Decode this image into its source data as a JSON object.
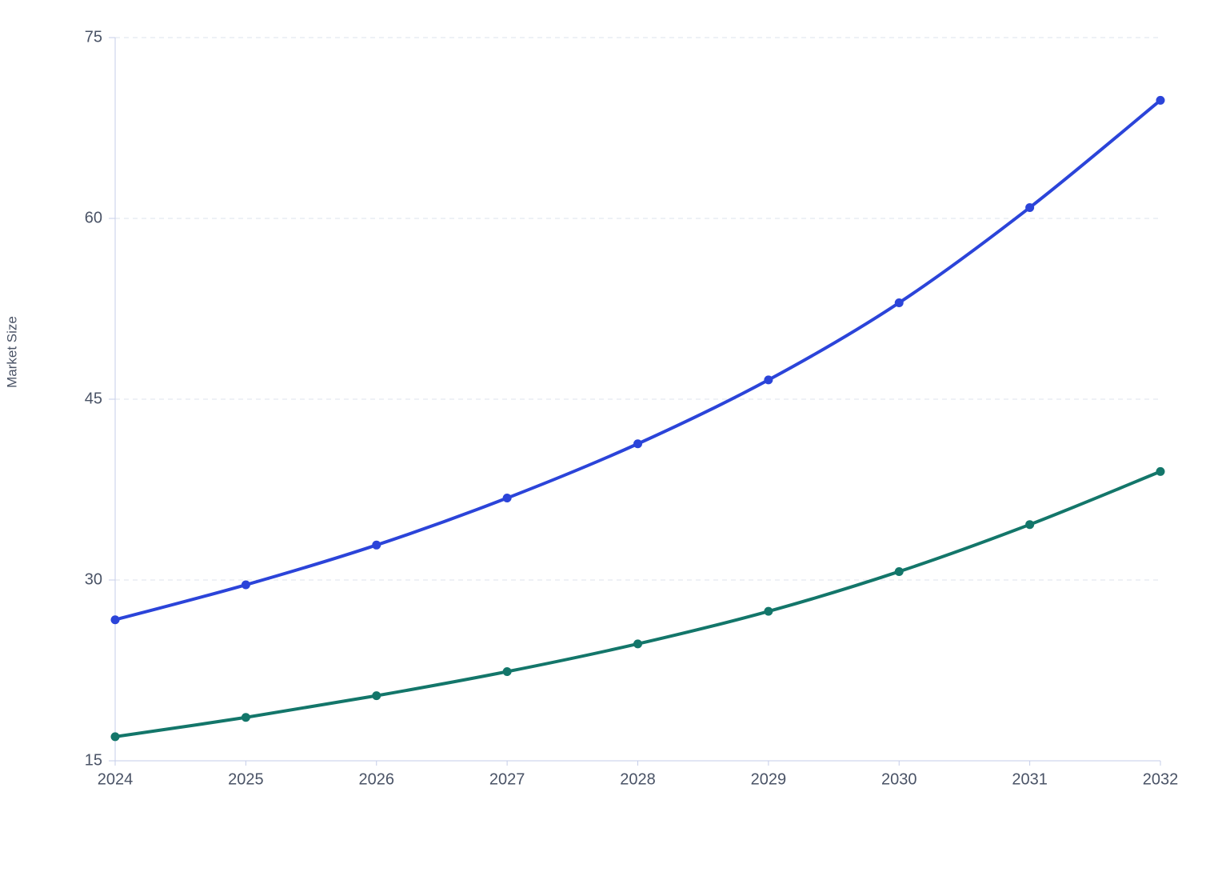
{
  "chart_data": {
    "type": "line",
    "y_label": "Market Size",
    "categories": [
      "2024",
      "2025",
      "2026",
      "2027",
      "2028",
      "2029",
      "2030",
      "2031",
      "2032"
    ],
    "series": [
      {
        "color": "#2b44d9",
        "values": [
          26.7,
          29.6,
          32.9,
          36.8,
          41.3,
          46.6,
          53.0,
          60.9,
          69.8
        ]
      },
      {
        "color": "#13766a",
        "values": [
          17.0,
          18.6,
          20.4,
          22.4,
          24.7,
          27.4,
          30.7,
          34.6,
          39.0
        ]
      }
    ],
    "ylim": [
      15,
      75
    ],
    "yticks": [
      15,
      30,
      45,
      60,
      75
    ],
    "grid": true,
    "smooth": true
  }
}
